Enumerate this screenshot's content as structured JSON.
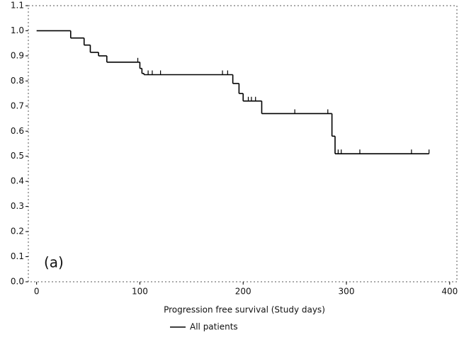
{
  "chart_data": {
    "type": "step",
    "xlabel": "Progression free survival (Study days)",
    "annotation": "(a)",
    "xlim": [
      -8,
      407
    ],
    "xticks": [
      0,
      100,
      200,
      300,
      400
    ],
    "ylim": [
      0,
      1.1
    ],
    "yticks": [
      0.0,
      0.1,
      0.2,
      0.3,
      0.4,
      0.5,
      0.6,
      0.7,
      0.8,
      0.9,
      1.0,
      1.1
    ],
    "series": [
      {
        "name": "All patients",
        "color": "#000000",
        "x": [
          0,
          33,
          46,
          52,
          60,
          68,
          100,
          102,
          104,
          190,
          196,
          200,
          218,
          286,
          289,
          380
        ],
        "values": [
          1.0,
          0.971,
          0.943,
          0.914,
          0.9,
          0.875,
          0.85,
          0.83,
          0.825,
          0.79,
          0.75,
          0.72,
          0.67,
          0.58,
          0.51,
          0.51
        ]
      }
    ],
    "censored": {
      "x": [
        98,
        108,
        112,
        120,
        180,
        185,
        205,
        208,
        212,
        250,
        282,
        292,
        295,
        313,
        363,
        380
      ],
      "values": [
        0.875,
        0.825,
        0.825,
        0.825,
        0.825,
        0.825,
        0.72,
        0.72,
        0.72,
        0.67,
        0.67,
        0.51,
        0.51,
        0.51,
        0.51,
        0.51
      ]
    }
  }
}
